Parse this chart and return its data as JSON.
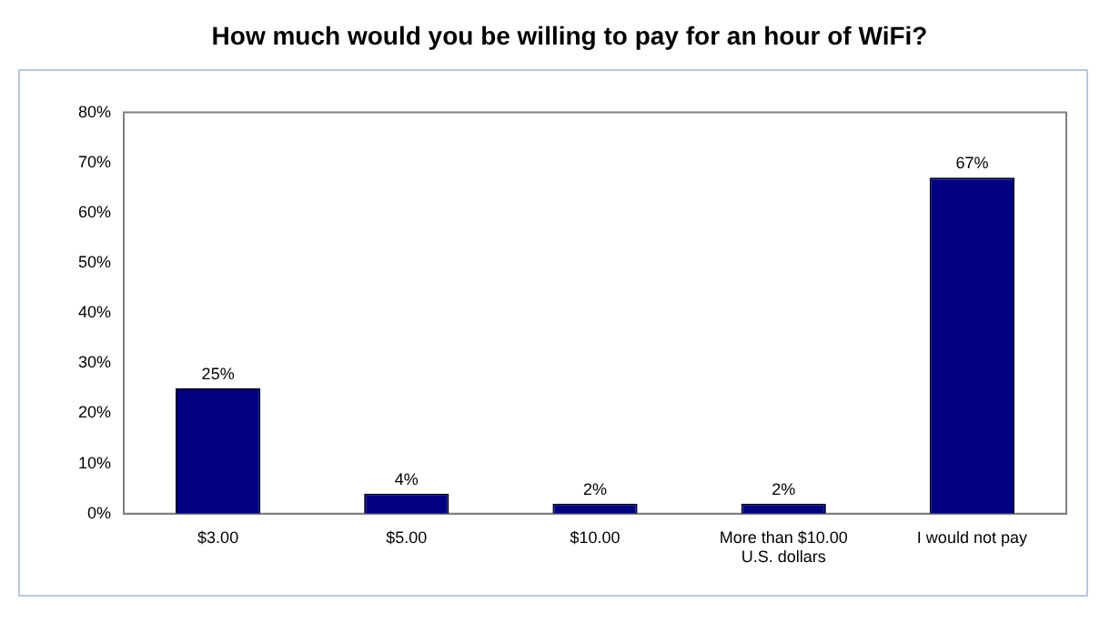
{
  "chart_data": {
    "type": "bar",
    "title": "How much would you be willing to pay for an hour of WiFi?",
    "categories": [
      "$3.00",
      "$5.00",
      "$10.00",
      "More than $10.00 U.S. dollars",
      "I would not pay"
    ],
    "values": [
      25,
      4,
      2,
      2,
      67
    ],
    "color": "#000080",
    "value_labels": [
      "25%",
      "4%",
      "2%",
      "2%",
      "67%"
    ],
    "ylim": [
      0,
      80
    ],
    "yticks": [
      {
        "value": 0,
        "label": "0%"
      },
      {
        "value": 10,
        "label": "10%"
      },
      {
        "value": 20,
        "label": "20%"
      },
      {
        "value": 30,
        "label": "30%"
      },
      {
        "value": 40,
        "label": "40%"
      },
      {
        "value": 50,
        "label": "50%"
      },
      {
        "value": 60,
        "label": "60%"
      },
      {
        "value": 70,
        "label": "70%"
      },
      {
        "value": 80,
        "label": "80%"
      }
    ],
    "grid": false,
    "legend": false
  }
}
